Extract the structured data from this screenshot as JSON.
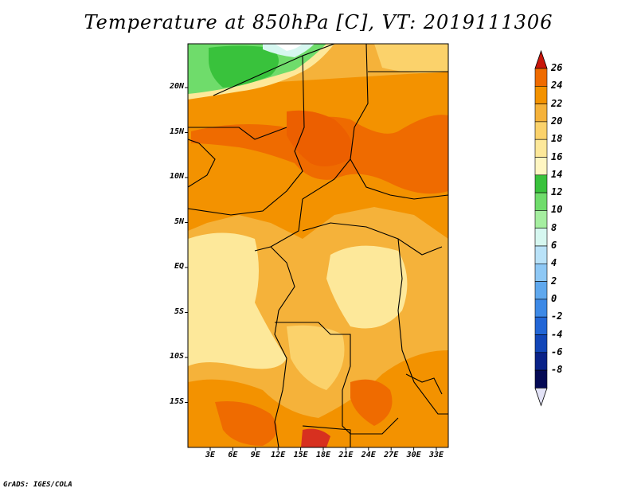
{
  "title": "Temperature at 850hPa [C], VT: 2019111306",
  "credit": "GrADS: IGES/COLA",
  "map": {
    "lat_labels": [
      "20N",
      "15N",
      "10N",
      "5N",
      "EQ",
      "5S",
      "10S",
      "15S"
    ],
    "lon_labels": [
      "3E",
      "6E",
      "9E",
      "12E",
      "15E",
      "18E",
      "21E",
      "24E",
      "27E",
      "30E",
      "33E"
    ]
  },
  "colorbar": {
    "labels": [
      "26",
      "24",
      "22",
      "20",
      "18",
      "16",
      "14",
      "12",
      "10",
      "8",
      "6",
      "4",
      "2",
      "0",
      "-2",
      "-4",
      "-6",
      "-8"
    ],
    "colors": [
      "#d7301f",
      "#ef6b00",
      "#f39200",
      "#f5b23a",
      "#fbd26b",
      "#fde89a",
      "#fff6c2",
      "#39c23c",
      "#6fdc6b",
      "#a5eea0",
      "#d6f7f0",
      "#b9e2f8",
      "#8ec8f5",
      "#5fa8ee",
      "#3d89e6",
      "#2266d6",
      "#1246b8",
      "#0a2288",
      "#050a55"
    ],
    "low_arrow_color": "#e3e3f7",
    "high_arrow_color": "#c8160a"
  }
}
